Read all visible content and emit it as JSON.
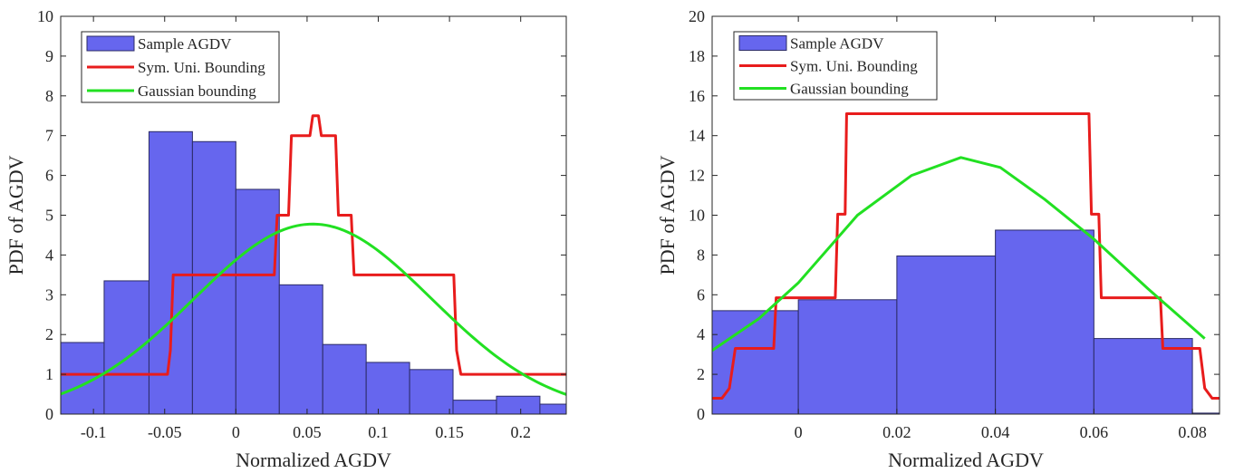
{
  "chart_data": [
    {
      "type": "bar",
      "xlabel": "Normalized AGDV",
      "ylabel": "PDF of AGDV",
      "xlim": [
        -0.123,
        0.232
      ],
      "ylim": [
        0,
        10
      ],
      "xticks": [
        -0.1,
        -0.05,
        0,
        0.05,
        0.1,
        0.15,
        0.2
      ],
      "xtick_labels": [
        "-0.1",
        "-0.05",
        "0",
        "0.05",
        "0.1",
        "0.15",
        "0.2"
      ],
      "yticks": [
        0,
        1,
        2,
        3,
        4,
        5,
        6,
        7,
        8,
        9,
        10
      ],
      "ytick_labels": [
        "0",
        "1",
        "2",
        "3",
        "4",
        "5",
        "6",
        "7",
        "8",
        "9",
        "10"
      ],
      "legend": {
        "position": "top-left",
        "entries": [
          "Sample AGDV",
          "Sym. Uni. Bounding",
          "Gaussian bounding"
        ]
      },
      "colors": {
        "bars": "#6666ee",
        "bar_edge": "#2b2b66",
        "red": "#e81c1c",
        "green": "#22e022"
      },
      "histogram": {
        "name": "Sample AGDV",
        "edges": [
          -0.123,
          -0.0925,
          -0.061,
          -0.0305,
          0.0,
          0.0305,
          0.061,
          0.0915,
          0.122,
          0.1525,
          0.183,
          0.2135,
          0.232
        ],
        "values": [
          1.8,
          3.35,
          7.1,
          6.85,
          5.65,
          3.25,
          1.75,
          1.3,
          1.12,
          0.35,
          0.45,
          0.25
        ]
      },
      "series": [
        {
          "name": "Sym. Uni. Bounding",
          "x": [
            -0.123,
            -0.048,
            -0.046,
            -0.044,
            0.027,
            0.029,
            0.037,
            0.039,
            0.052,
            0.054,
            0.058,
            0.06,
            0.07,
            0.072,
            0.081,
            0.083,
            0.153,
            0.155,
            0.158,
            0.232
          ],
          "y": [
            1.0,
            1.0,
            1.6,
            3.5,
            3.5,
            5.0,
            5.0,
            7.0,
            7.0,
            7.5,
            7.5,
            7.0,
            7.0,
            5.0,
            5.0,
            3.5,
            3.5,
            1.6,
            1.0,
            1.0
          ]
        },
        {
          "name": "Gaussian bounding",
          "type": "line",
          "mean": 0.054,
          "std": 0.0835,
          "x_range": [
            -0.123,
            0.232
          ]
        }
      ]
    },
    {
      "type": "bar",
      "xlabel": "Normalized AGDV",
      "ylabel": "PDF of AGDV",
      "xlim": [
        -0.0175,
        0.0855
      ],
      "ylim": [
        0,
        20
      ],
      "xticks": [
        0,
        0.02,
        0.04,
        0.06,
        0.08
      ],
      "xtick_labels": [
        "0",
        "0.02",
        "0.04",
        "0.06",
        "0.08"
      ],
      "yticks": [
        0,
        2,
        4,
        6,
        8,
        10,
        12,
        14,
        16,
        18,
        20
      ],
      "ytick_labels": [
        "0",
        "2",
        "4",
        "6",
        "8",
        "10",
        "12",
        "14",
        "16",
        "18",
        "20"
      ],
      "legend": {
        "position": "top-left",
        "entries": [
          "Sample AGDV",
          "Sym. Uni. Bounding",
          "Gaussian bounding"
        ]
      },
      "colors": {
        "bars": "#6666ee",
        "bar_edge": "#2b2b66",
        "red": "#e81c1c",
        "green": "#22e022"
      },
      "histogram": {
        "name": "Sample AGDV",
        "edges": [
          -0.0175,
          0.0,
          0.02,
          0.04,
          0.06,
          0.08,
          0.0855
        ],
        "values": [
          5.2,
          5.75,
          7.95,
          9.25,
          3.8,
          0.05
        ]
      },
      "series": [
        {
          "name": "Sym. Uni. Bounding",
          "x": [
            -0.0175,
            -0.0155,
            -0.014,
            -0.0128,
            -0.005,
            -0.0045,
            0.0075,
            0.008,
            0.0095,
            0.0098,
            0.059,
            0.0595,
            0.061,
            0.0615,
            0.0735,
            0.074,
            0.0815,
            0.0825,
            0.084,
            0.0855
          ],
          "y": [
            0.8,
            0.8,
            1.3,
            3.3,
            3.3,
            5.85,
            5.85,
            10.05,
            10.05,
            15.1,
            15.1,
            10.05,
            10.05,
            5.85,
            5.85,
            3.3,
            3.3,
            1.3,
            0.8,
            0.8
          ]
        },
        {
          "name": "Gaussian bounding",
          "type": "line",
          "x": [
            -0.0175,
            -0.008,
            0.0,
            0.012,
            0.023,
            0.033,
            0.041,
            0.05,
            0.06,
            0.071,
            0.0825
          ],
          "y": [
            3.2,
            4.8,
            6.6,
            10.0,
            12.0,
            12.9,
            12.4,
            10.8,
            8.8,
            6.3,
            3.8
          ]
        }
      ]
    }
  ]
}
